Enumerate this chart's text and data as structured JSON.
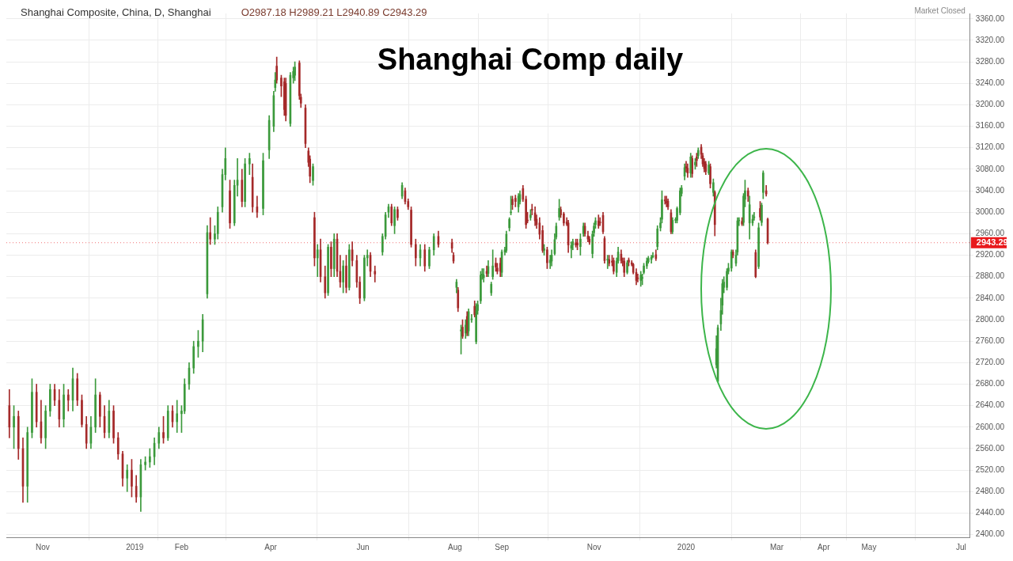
{
  "chart_data": {
    "type": "candlestick",
    "title": "Shanghai Comp daily",
    "subtitle": "Shanghai Composite, China, D, Shanghai",
    "annotations": [
      "O2987.18 H2989.21 L2940.89 C2943.29",
      "Market Closed"
    ],
    "ref_lines": [
      {
        "axis": "y",
        "value": 2943.29,
        "label": "2943.29",
        "color": "#e8191c",
        "line_style": "dotted"
      }
    ],
    "xlim": [
      "2018-10-08",
      "2020-07-07"
    ],
    "xticks": [
      {
        "value": "2018-11-01",
        "label": "Nov"
      },
      {
        "value": "2019-01-01",
        "label": "2019"
      },
      {
        "value": "2019-02-01",
        "label": "Feb"
      },
      {
        "value": "2019-04-01",
        "label": "Apr"
      },
      {
        "value": "2019-06-01",
        "label": "Jun"
      },
      {
        "value": "2019-08-01",
        "label": "Aug"
      },
      {
        "value": "2019-09-01",
        "label": "Sep"
      },
      {
        "value": "2019-11-01",
        "label": "Nov"
      },
      {
        "value": "2020-01-01",
        "label": "2020"
      },
      {
        "value": "2020-03-01",
        "label": "Mar"
      },
      {
        "value": "2020-04-01",
        "label": "Apr"
      },
      {
        "value": "2020-05-01",
        "label": "May"
      },
      {
        "value": "2020-07-01",
        "label": "Jul"
      }
    ],
    "ylim": [
      2395,
      3370
    ],
    "yticks": [
      {
        "value": 2400,
        "label": "2400.00"
      },
      {
        "value": 2440,
        "label": "2440.00"
      },
      {
        "value": 2480,
        "label": "2480.00"
      },
      {
        "value": 2520,
        "label": "2520.00"
      },
      {
        "value": 2560,
        "label": "2560.00"
      },
      {
        "value": 2600,
        "label": "2600.00"
      },
      {
        "value": 2640,
        "label": "2640.00"
      },
      {
        "value": 2680,
        "label": "2680.00"
      },
      {
        "value": 2720,
        "label": "2720.00"
      },
      {
        "value": 2760,
        "label": "2760.00"
      },
      {
        "value": 2800,
        "label": "2800.00"
      },
      {
        "value": 2840,
        "label": "2840.00"
      },
      {
        "value": 2880,
        "label": "2880.00"
      },
      {
        "value": 2920,
        "label": "2920.00"
      },
      {
        "value": 2960,
        "label": "2960.00"
      },
      {
        "value": 3000,
        "label": "3000.00"
      },
      {
        "value": 3040,
        "label": "3040.00"
      },
      {
        "value": 3080,
        "label": "3080.00"
      },
      {
        "value": 3120,
        "label": "3120.00"
      },
      {
        "value": 3160,
        "label": "3160.00"
      },
      {
        "value": 3200,
        "label": "3200.00"
      },
      {
        "value": 3240,
        "label": "3240.00"
      },
      {
        "value": 3280,
        "label": "3280.00"
      },
      {
        "value": 3320,
        "label": "3320.00"
      },
      {
        "value": 3360,
        "label": "3360.00"
      }
    ],
    "grid": true,
    "series": [
      {
        "color": "#3c9a3c",
        "x": [
          "2018-10-13",
          "2018-10-22",
          "2018-10-25",
          "2018-11-03",
          "2018-11-06",
          "2018-11-15",
          "2018-11-21",
          "2018-12-03",
          "2018-12-06",
          "2018-12-15",
          "2018-12-27",
          "2019-01-05",
          "2019-01-08",
          "2019-01-11",
          "2019-01-14",
          "2019-01-17",
          "2019-01-23",
          "2019-01-29",
          "2019-02-01",
          "2019-02-03",
          "2019-02-06",
          "2019-02-09",
          "2019-02-12",
          "2019-02-15",
          "2019-02-18",
          "2019-02-23",
          "2019-02-25",
          "2019-02-28",
          "2019-03-02",
          "2019-03-08",
          "2019-03-10",
          "2019-03-15",
          "2019-03-18",
          "2019-03-27",
          "2019-03-31",
          "2019-04-03",
          "2019-04-04",
          "2019-04-14",
          "2019-04-16",
          "2019-04-17",
          "2019-04-29",
          "2019-05-02",
          "2019-05-09",
          "2019-05-13",
          "2019-05-19",
          "2019-05-23",
          "2019-06-02",
          "2019-06-04",
          "2019-06-14",
          "2019-06-16",
          "2019-06-18",
          "2019-06-22",
          "2019-06-27",
          "2019-07-09",
          "2019-07-15",
          "2019-07-18",
          "2019-08-02",
          "2019-08-05",
          "2019-08-08",
          "2019-08-10",
          "2019-08-12",
          "2019-08-15",
          "2019-08-16",
          "2019-08-18",
          "2019-08-19",
          "2019-08-20",
          "2019-08-23",
          "2019-08-25",
          "2019-08-26",
          "2019-09-01",
          "2019-09-03",
          "2019-09-04",
          "2019-09-06",
          "2019-09-07",
          "2019-09-12",
          "2019-09-13",
          "2019-09-20",
          "2019-09-29",
          "2019-10-03",
          "2019-10-04",
          "2019-10-06",
          "2019-10-07",
          "2019-10-09",
          "2019-10-17",
          "2019-10-18",
          "2019-10-23",
          "2019-10-25",
          "2019-10-31",
          "2019-11-01",
          "2019-11-02",
          "2019-11-10",
          "2019-11-16",
          "2019-11-17",
          "2019-11-23",
          "2019-12-02",
          "2019-12-03",
          "2019-12-04",
          "2019-12-06",
          "2019-12-07",
          "2019-12-09",
          "2019-12-10",
          "2019-12-13",
          "2019-12-15",
          "2019-12-16",
          "2019-12-23",
          "2019-12-25",
          "2019-12-26",
          "2019-12-28",
          "2019-12-29",
          "2019-12-31",
          "2020-01-04",
          "2020-01-07",
          "2020-01-09",
          "2020-01-16",
          "2020-01-19",
          "2020-01-21",
          "2020-01-22",
          "2020-01-24",
          "2020-01-25",
          "2020-01-26",
          "2020-01-28",
          "2020-01-29",
          "2020-01-31",
          "2020-02-03",
          "2020-02-04",
          "2020-02-05",
          "2020-02-08",
          "2020-02-09",
          "2020-02-12",
          "2020-02-14",
          "2020-02-15",
          "2020-02-18",
          "2020-02-20",
          "2020-02-21"
        ],
        "ohlc": [
          [
            2600,
            2640,
            2560,
            2620
          ],
          [
            2490,
            2600,
            2460,
            2590
          ],
          [
            2590,
            2690,
            2580,
            2665
          ],
          [
            2580,
            2640,
            2560,
            2630
          ],
          [
            2630,
            2680,
            2620,
            2670
          ],
          [
            2615,
            2680,
            2600,
            2660
          ],
          [
            2650,
            2710,
            2630,
            2690
          ],
          [
            2570,
            2620,
            2560,
            2600
          ],
          [
            2600,
            2690,
            2590,
            2660
          ],
          [
            2590,
            2650,
            2580,
            2630
          ],
          [
            2505,
            2530,
            2480,
            2520
          ],
          [
            2470,
            2540,
            2443,
            2530
          ],
          [
            2530,
            2545,
            2520,
            2535
          ],
          [
            2535,
            2560,
            2525,
            2545
          ],
          [
            2545,
            2580,
            2530,
            2570
          ],
          [
            2570,
            2600,
            2560,
            2590
          ],
          [
            2580,
            2640,
            2575,
            2630
          ],
          [
            2610,
            2650,
            2590,
            2625
          ],
          [
            2625,
            2640,
            2590,
            2630
          ],
          [
            2630,
            2690,
            2625,
            2680
          ],
          [
            2680,
            2720,
            2670,
            2710
          ],
          [
            2710,
            2760,
            2700,
            2750
          ],
          [
            2750,
            2780,
            2730,
            2760
          ],
          [
            2760,
            2810,
            2740,
            2800
          ],
          [
            2848,
            2975,
            2840,
            2962
          ],
          [
            2950,
            2975,
            2940,
            2960
          ],
          [
            2960,
            3010,
            2950,
            3000
          ],
          [
            3010,
            3080,
            3000,
            3070
          ],
          [
            3070,
            3120,
            3060,
            3100
          ],
          [
            2980,
            3060,
            2975,
            3050
          ],
          [
            3050,
            3100,
            3030,
            3060
          ],
          [
            3020,
            3100,
            3010,
            3090
          ],
          [
            3090,
            3110,
            3070,
            3100
          ],
          [
            3007,
            3110,
            2995,
            3096
          ],
          [
            3116,
            3180,
            3100,
            3171
          ],
          [
            3160,
            3225,
            3150,
            3217
          ],
          [
            3232,
            3260,
            3225,
            3246
          ],
          [
            3165,
            3260,
            3160,
            3255
          ],
          [
            3250,
            3270,
            3240,
            3262
          ],
          [
            3255,
            3280,
            3245,
            3270
          ],
          [
            3059,
            3090,
            3050,
            3085
          ],
          [
            2915,
            2940,
            2880,
            2930
          ],
          [
            2850,
            2940,
            2845,
            2935
          ],
          [
            2895,
            2960,
            2880,
            2950
          ],
          [
            2870,
            2910,
            2850,
            2900
          ],
          [
            2860,
            2940,
            2855,
            2930
          ],
          [
            2840,
            2920,
            2835,
            2915
          ],
          [
            2915,
            2930,
            2900,
            2920
          ],
          [
            2926,
            2960,
            2920,
            2955
          ],
          [
            2955,
            3000,
            2950,
            2995
          ],
          [
            3000,
            3015,
            2990,
            3010
          ],
          [
            2975,
            3010,
            2960,
            3005
          ],
          [
            3030,
            3055,
            3025,
            3050
          ],
          [
            2915,
            2940,
            2900,
            2930
          ],
          [
            2900,
            2935,
            2895,
            2930
          ],
          [
            2930,
            2960,
            2920,
            2955
          ],
          [
            2860,
            2875,
            2850,
            2870
          ],
          [
            2779,
            2790,
            2736,
            2781
          ],
          [
            2775,
            2800,
            2765,
            2790
          ],
          [
            2779,
            2820,
            2770,
            2815
          ],
          [
            2800,
            2810,
            2795,
            2800
          ],
          [
            2759,
            2830,
            2755,
            2817
          ],
          [
            2817,
            2835,
            2810,
            2828
          ],
          [
            2835,
            2890,
            2830,
            2883
          ],
          [
            2883,
            2895,
            2875,
            2885
          ],
          [
            2878,
            2895,
            2870,
            2883
          ],
          [
            2886,
            2910,
            2880,
            2899
          ],
          [
            2850,
            2870,
            2845,
            2866
          ],
          [
            2880,
            2930,
            2875,
            2900
          ],
          [
            2888,
            2930,
            2880,
            2926
          ],
          [
            2926,
            2935,
            2920,
            2930
          ],
          [
            2929,
            2965,
            2925,
            2959
          ],
          [
            2971,
            2990,
            2965,
            2987
          ],
          [
            2999,
            3030,
            2995,
            3000
          ],
          [
            3010,
            3035,
            3000,
            3030
          ],
          [
            3020,
            3040,
            3015,
            3033
          ],
          [
            2990,
            3005,
            2985,
            2995
          ],
          [
            2929,
            2940,
            2920,
            2932
          ],
          [
            2906,
            2920,
            2895,
            2911
          ],
          [
            2909,
            2930,
            2900,
            2920
          ],
          [
            2923,
            2960,
            2920,
            2949
          ],
          [
            2954,
            2980,
            2950,
            2974
          ],
          [
            2991,
            3024,
            2985,
            3007
          ],
          [
            2933,
            2945,
            2915,
            2938
          ],
          [
            2939,
            2950,
            2930,
            2945
          ],
          [
            2936,
            2960,
            2920,
            2950
          ],
          [
            2960,
            2980,
            2955,
            2974
          ],
          [
            2923,
            2965,
            2915,
            2959
          ],
          [
            2962,
            2980,
            2955,
            2974
          ],
          [
            2977,
            2990,
            2970,
            2984
          ],
          [
            2911,
            2920,
            2895,
            2912
          ],
          [
            2888,
            2915,
            2880,
            2909
          ],
          [
            2909,
            2935,
            2905,
            2926
          ],
          [
            2888,
            2910,
            2885,
            2906
          ],
          [
            2873,
            2890,
            2862,
            2883
          ],
          [
            2877,
            2885,
            2865,
            2878
          ],
          [
            2888,
            2905,
            2885,
            2900
          ],
          [
            2900,
            2915,
            2895,
            2909
          ],
          [
            2908,
            2918,
            2905,
            2914
          ],
          [
            2912,
            2920,
            2905,
            2916
          ],
          [
            2917,
            2925,
            2915,
            2919
          ],
          [
            2936,
            2975,
            2930,
            2969
          ],
          [
            2971,
            2990,
            2965,
            2980
          ],
          [
            2987,
            3040,
            2980,
            3023
          ],
          [
            2964,
            2990,
            2960,
            2985
          ],
          [
            2985,
            2990,
            2980,
            2986
          ],
          [
            2985,
            3010,
            2980,
            3007
          ],
          [
            2999,
            3045,
            2995,
            3040
          ],
          [
            3035,
            3050,
            3030,
            3045
          ],
          [
            3067,
            3090,
            3060,
            3083
          ],
          [
            3073,
            3110,
            3065,
            3103
          ],
          [
            3088,
            3100,
            3080,
            3093
          ],
          [
            3105,
            3120,
            3100,
            3115
          ],
          [
            3073,
            3095,
            3070,
            3088
          ],
          [
            3037,
            3062,
            3030,
            3055
          ],
          [
            2716,
            2770,
            2710,
            2746
          ],
          [
            2685,
            2790,
            2685,
            2785
          ],
          [
            2792,
            2840,
            2780,
            2817
          ],
          [
            2827,
            2875,
            2810,
            2867
          ],
          [
            2860,
            2880,
            2850,
            2870
          ],
          [
            2860,
            2895,
            2855,
            2890
          ],
          [
            2890,
            2905,
            2885,
            2896
          ],
          [
            2896,
            2930,
            2890,
            2926
          ],
          [
            2905,
            2930,
            2900,
            2920
          ],
          [
            2926,
            2990,
            2920,
            2984
          ],
          [
            2984,
            2990,
            2975,
            2985
          ],
          [
            2981,
            3035,
            2975,
            3030
          ],
          [
            3024,
            3060,
            3010,
            3040
          ],
          [
            2980,
            3030,
            2950,
            3014
          ],
          [
            2980,
            2995,
            2975,
            2987
          ],
          [
            2990,
            3000,
            2985,
            2990
          ],
          [
            2899,
            2980,
            2895,
            2971
          ],
          [
            2981,
            3017,
            2975,
            3013
          ],
          [
            3037,
            3077,
            3025,
            3073
          ]
        ]
      },
      {
        "color": "#a52a2a",
        "x": [
          "2018-10-10",
          "2018-10-16",
          "2018-10-19",
          "2018-10-28",
          "2018-10-31",
          "2018-11-09",
          "2018-11-12",
          "2018-11-18",
          "2018-11-24",
          "2018-11-27",
          "2018-11-30",
          "2018-12-09",
          "2018-12-12",
          "2018-12-18",
          "2018-12-21",
          "2018-12-24",
          "2018-12-30",
          "2019-01-02",
          "2019-01-20",
          "2019-01-26",
          "2019-02-20",
          "2019-03-05",
          "2019-03-13",
          "2019-03-20",
          "2019-03-23",
          "2019-04-05",
          "2019-04-08",
          "2019-04-10",
          "2019-04-11",
          "2019-04-20",
          "2019-04-21",
          "2019-04-24",
          "2019-04-26",
          "2019-04-27",
          "2019-04-30",
          "2019-05-04",
          "2019-05-07",
          "2019-05-11",
          "2019-05-15",
          "2019-05-17",
          "2019-05-21",
          "2019-05-25",
          "2019-05-28",
          "2019-05-30",
          "2019-06-06",
          "2019-06-09",
          "2019-06-20",
          "2019-06-24",
          "2019-06-29",
          "2019-07-01",
          "2019-07-03",
          "2019-07-06",
          "2019-07-12",
          "2019-07-21",
          "2019-07-30",
          "2019-07-31",
          "2019-08-03",
          "2019-08-06",
          "2019-08-09",
          "2019-08-14",
          "2019-08-22",
          "2019-08-28",
          "2019-08-29",
          "2019-08-31",
          "2019-09-08",
          "2019-09-10",
          "2019-09-15",
          "2019-09-17",
          "2019-09-18",
          "2019-09-21",
          "2019-09-23",
          "2019-09-24",
          "2019-09-26",
          "2019-09-28",
          "2019-10-01",
          "2019-10-10",
          "2019-10-12",
          "2019-10-14",
          "2019-10-15",
          "2019-10-20",
          "2019-10-21",
          "2019-10-26",
          "2019-10-28",
          "2019-10-29",
          "2019-11-04",
          "2019-11-05",
          "2019-11-07",
          "2019-11-08",
          "2019-11-11",
          "2019-11-13",
          "2019-11-14",
          "2019-11-19",
          "2019-11-20",
          "2019-11-21",
          "2019-11-24",
          "2019-11-26",
          "2019-11-27",
          "2019-11-29",
          "2019-11-30",
          "2019-12-12",
          "2019-12-18",
          "2019-12-19",
          "2019-12-20",
          "2019-12-22",
          "2020-01-01",
          "2020-01-02",
          "2020-01-05",
          "2020-01-08",
          "2020-01-11",
          "2020-01-12",
          "2020-01-13",
          "2020-01-14",
          "2020-01-17",
          "2020-01-20",
          "2020-02-01",
          "2020-02-07",
          "2020-02-11",
          "2020-02-16",
          "2020-02-19",
          "2020-02-23",
          "2020-02-24"
        ],
        "ohlc": [
          [
            2640,
            2670,
            2580,
            2600
          ],
          [
            2620,
            2630,
            2540,
            2560
          ],
          [
            2560,
            2580,
            2460,
            2490
          ],
          [
            2665,
            2680,
            2600,
            2610
          ],
          [
            2610,
            2650,
            2570,
            2580
          ],
          [
            2670,
            2680,
            2640,
            2650
          ],
          [
            2650,
            2670,
            2600,
            2615
          ],
          [
            2660,
            2670,
            2630,
            2650
          ],
          [
            2690,
            2700,
            2640,
            2650
          ],
          [
            2650,
            2660,
            2600,
            2605
          ],
          [
            2605,
            2620,
            2560,
            2570
          ],
          [
            2660,
            2665,
            2600,
            2620
          ],
          [
            2620,
            2640,
            2580,
            2590
          ],
          [
            2630,
            2640,
            2570,
            2580
          ],
          [
            2580,
            2590,
            2540,
            2550
          ],
          [
            2550,
            2555,
            2490,
            2505
          ],
          [
            2520,
            2540,
            2470,
            2490
          ],
          [
            2490,
            2510,
            2460,
            2470
          ],
          [
            2590,
            2620,
            2570,
            2580
          ],
          [
            2630,
            2640,
            2600,
            2610
          ],
          [
            2962,
            2990,
            2940,
            2950
          ],
          [
            3040,
            3060,
            2970,
            2980
          ],
          [
            3060,
            3080,
            3010,
            3020
          ],
          [
            3065,
            3090,
            3000,
            3010
          ],
          [
            3010,
            3030,
            2990,
            3000
          ],
          [
            3272,
            3289,
            3240,
            3246
          ],
          [
            3250,
            3255,
            3215,
            3235
          ],
          [
            3243,
            3250,
            3180,
            3191
          ],
          [
            3240,
            3250,
            3170,
            3180
          ],
          [
            3278,
            3282,
            3210,
            3217
          ],
          [
            3214,
            3220,
            3195,
            3203
          ],
          [
            3194,
            3200,
            3120,
            3128
          ],
          [
            3114,
            3120,
            3085,
            3093
          ],
          [
            3099,
            3105,
            3055,
            3067
          ],
          [
            2990,
            3000,
            2900,
            2915
          ],
          [
            2930,
            2950,
            2870,
            2880
          ],
          [
            2880,
            2900,
            2840,
            2850
          ],
          [
            2935,
            2945,
            2880,
            2895
          ],
          [
            2950,
            2960,
            2880,
            2890
          ],
          [
            2890,
            2920,
            2860,
            2870
          ],
          [
            2900,
            2920,
            2850,
            2860
          ],
          [
            2930,
            2945,
            2900,
            2910
          ],
          [
            2910,
            2920,
            2860,
            2870
          ],
          [
            2870,
            2880,
            2830,
            2840
          ],
          [
            2920,
            2925,
            2880,
            2890
          ],
          [
            2890,
            2900,
            2870,
            2885
          ],
          [
            3010,
            3015,
            2975,
            2980
          ],
          [
            3005,
            3010,
            2985,
            2990
          ],
          [
            3040,
            3045,
            3015,
            3020
          ],
          [
            3020,
            3025,
            3005,
            3010
          ],
          [
            3004,
            3010,
            2935,
            2940
          ],
          [
            2940,
            2950,
            2900,
            2915
          ],
          [
            2930,
            2940,
            2890,
            2900
          ],
          [
            2955,
            2965,
            2935,
            2940
          ],
          [
            2943,
            2950,
            2925,
            2933
          ],
          [
            2920,
            2925,
            2905,
            2909
          ],
          [
            2855,
            2860,
            2815,
            2822
          ],
          [
            2786,
            2800,
            2765,
            2769
          ],
          [
            2806,
            2815,
            2770,
            2775
          ],
          [
            2825,
            2835,
            2805,
            2809
          ],
          [
            2890,
            2900,
            2880,
            2886
          ],
          [
            2905,
            2915,
            2890,
            2898
          ],
          [
            2896,
            2905,
            2885,
            2890
          ],
          [
            2905,
            2915,
            2880,
            2890
          ],
          [
            3024,
            3030,
            3005,
            3014
          ],
          [
            3026,
            3032,
            3010,
            3020
          ],
          [
            3044,
            3050,
            3020,
            3024
          ],
          [
            3024,
            3030,
            2970,
            2977
          ],
          [
            2985,
            3000,
            2980,
            2984
          ],
          [
            3005,
            3015,
            2995,
            3004
          ],
          [
            2999,
            3010,
            2975,
            2984
          ],
          [
            2987,
            2995,
            2970,
            2977
          ],
          [
            2980,
            2990,
            2950,
            2959
          ],
          [
            2966,
            2975,
            2925,
            2929
          ],
          [
            2930,
            2935,
            2895,
            2906
          ],
          [
            3005,
            3010,
            2990,
            2995
          ],
          [
            2997,
            3000,
            2975,
            2980
          ],
          [
            2982,
            2990,
            2975,
            2978
          ],
          [
            2980,
            2985,
            2925,
            2939
          ],
          [
            2943,
            2950,
            2935,
            2939
          ],
          [
            2943,
            2950,
            2930,
            2939
          ],
          [
            2974,
            2980,
            2955,
            2960
          ],
          [
            2956,
            2965,
            2945,
            2950
          ],
          [
            2950,
            2955,
            2940,
            2944
          ],
          [
            2984,
            2995,
            2970,
            2975
          ],
          [
            2982,
            2990,
            2975,
            2980
          ],
          [
            2994,
            3000,
            2960,
            2964
          ],
          [
            2951,
            2955,
            2905,
            2910
          ],
          [
            2912,
            2920,
            2900,
            2905
          ],
          [
            2909,
            2920,
            2900,
            2907
          ],
          [
            2910,
            2915,
            2885,
            2890
          ],
          [
            2922,
            2930,
            2905,
            2910
          ],
          [
            2908,
            2915,
            2900,
            2907
          ],
          [
            2909,
            2915,
            2880,
            2888
          ],
          [
            2911,
            2915,
            2900,
            2907
          ],
          [
            2906,
            2910,
            2900,
            2903
          ],
          [
            2903,
            2905,
            2885,
            2888
          ],
          [
            2888,
            2895,
            2865,
            2873
          ],
          [
            2878,
            2885,
            2870,
            2876
          ],
          [
            2921,
            2930,
            2910,
            2914
          ],
          [
            3023,
            3030,
            3015,
            3021
          ],
          [
            3020,
            3030,
            3010,
            3017
          ],
          [
            3021,
            3025,
            3005,
            3010
          ],
          [
            2999,
            3005,
            2960,
            2964
          ],
          [
            3085,
            3095,
            3075,
            3082
          ],
          [
            3082,
            3090,
            3065,
            3073
          ],
          [
            3100,
            3105,
            3065,
            3072
          ],
          [
            3103,
            3110,
            3085,
            3096
          ],
          [
            3121,
            3126,
            3100,
            3108
          ],
          [
            3105,
            3110,
            3085,
            3090
          ],
          [
            3094,
            3100,
            3075,
            3081
          ],
          [
            3090,
            3095,
            3070,
            3076
          ],
          [
            3085,
            3090,
            3045,
            3053
          ],
          [
            3037,
            3040,
            2956,
            2977
          ],
          [
            2926,
            2930,
            2915,
            2920
          ],
          [
            2983,
            2990,
            2975,
            2978
          ],
          [
            3040,
            3045,
            3020,
            3030
          ],
          [
            2925,
            2930,
            2878,
            2880
          ],
          [
            3007,
            3020,
            2985,
            2991
          ],
          [
            3040,
            3050,
            3030,
            3034
          ],
          [
            2987.18,
            2989.21,
            2940.89,
            2943.29
          ]
        ]
      }
    ]
  }
}
